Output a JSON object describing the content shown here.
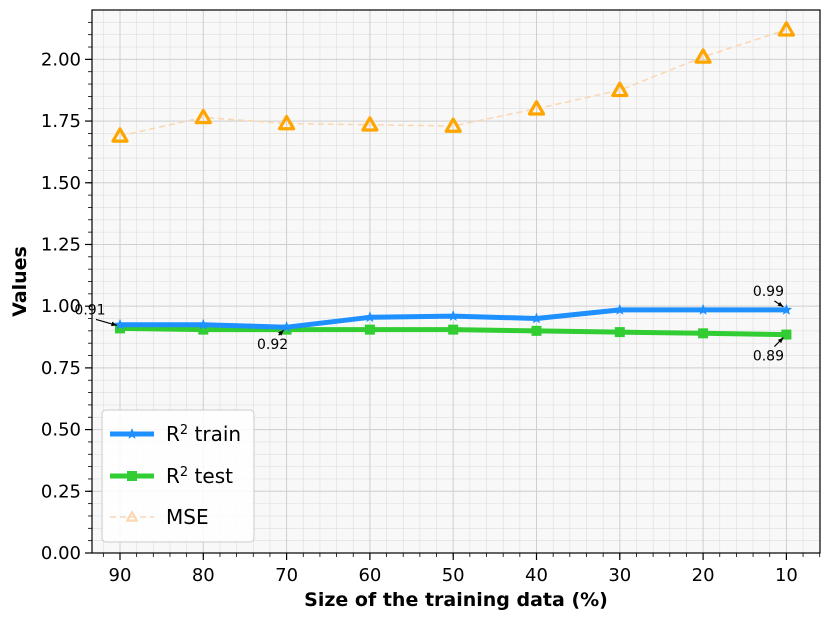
{
  "chart_data": {
    "type": "line",
    "xlabel": "Size of the training data (%)",
    "ylabel": "Values",
    "categories": [
      "90",
      "80",
      "70",
      "60",
      "50",
      "40",
      "30",
      "20",
      "10"
    ],
    "ylim": [
      0,
      2.2
    ],
    "y_ticks": [
      "0.00",
      "0.25",
      "0.50",
      "0.75",
      "1.00",
      "1.25",
      "1.50",
      "1.75",
      "2.00"
    ],
    "grid": true,
    "legend_position": "lower-left",
    "series": [
      {
        "name": "R² train",
        "legend_label": "R",
        "legend_sup": "2",
        "legend_suffix": " train",
        "color": "#1E90FF",
        "marker": "star",
        "values": [
          0.925,
          0.925,
          0.915,
          0.955,
          0.96,
          0.95,
          0.985,
          0.985,
          0.985
        ]
      },
      {
        "name": "R² test",
        "legend_label": "R",
        "legend_sup": "2",
        "legend_suffix": " test",
        "color": "#32CD32",
        "marker": "square",
        "values": [
          0.91,
          0.905,
          0.905,
          0.905,
          0.905,
          0.9,
          0.895,
          0.89,
          0.885
        ]
      },
      {
        "name": "MSE",
        "legend_label": "MSE",
        "legend_sup": "",
        "legend_suffix": "",
        "color": "#FFA500",
        "marker": "triangle",
        "values": [
          1.69,
          1.765,
          1.74,
          1.735,
          1.73,
          1.8,
          1.875,
          2.01,
          2.12
        ]
      }
    ],
    "annotations": [
      {
        "text": "0.91",
        "category": "90",
        "value": 0.91
      },
      {
        "text": "0.92",
        "category": "70",
        "value": 0.915
      },
      {
        "text": "0.99",
        "category": "10",
        "value": 0.985
      },
      {
        "text": "0.89",
        "category": "10",
        "value": 0.885
      }
    ]
  }
}
